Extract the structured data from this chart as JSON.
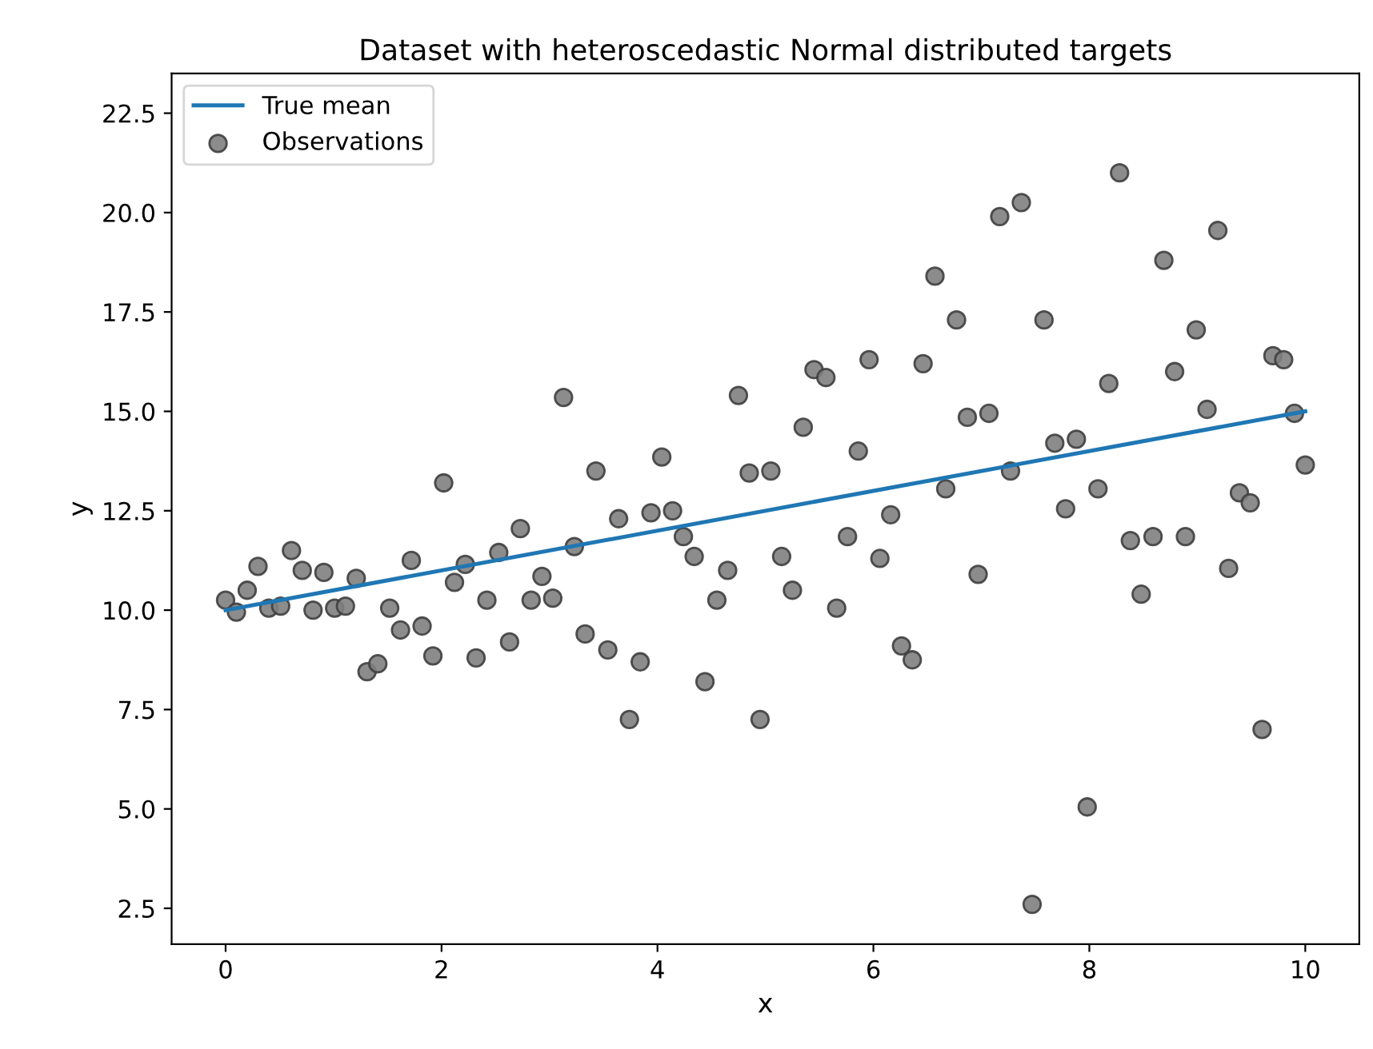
{
  "chart_data": {
    "type": "scatter",
    "title": "Dataset with heteroscedastic Normal distributed targets",
    "xlabel": "x",
    "ylabel": "y",
    "xlim": [
      -0.5,
      10.5
    ],
    "ylim": [
      1.6,
      23.5
    ],
    "xticks": [
      0,
      2,
      4,
      6,
      8,
      10
    ],
    "yticks": [
      2.5,
      {
        "value": 5,
        "label": "5.0"
      },
      7.5,
      {
        "value": 10,
        "label": "10.0"
      },
      12.5,
      {
        "value": 15,
        "label": "15.0"
      },
      17.5,
      {
        "value": 20,
        "label": "20.0"
      },
      22.5
    ],
    "grid": false,
    "legend": "top left",
    "series": [
      {
        "name": "True mean",
        "type": "line",
        "color": "#1f77b4",
        "line_style": "solid",
        "x": [
          0,
          10
        ],
        "values": [
          10,
          15
        ]
      },
      {
        "name": "Observations",
        "marker": "circle",
        "color": "#7f7f7f",
        "x": [
          0,
          0.1,
          0.2,
          0.3,
          0.4,
          0.51,
          0.61,
          0.71,
          0.81,
          0.91,
          1.01,
          1.11,
          1.21,
          1.31,
          1.41,
          1.52,
          1.62,
          1.72,
          1.82,
          1.92,
          2.02,
          2.12,
          2.22,
          2.32,
          2.42,
          2.53,
          2.63,
          2.73,
          2.83,
          2.93,
          3.03,
          3.13,
          3.23,
          3.33,
          3.43,
          3.54,
          3.64,
          3.74,
          3.84,
          3.94,
          4.04,
          4.14,
          4.24,
          4.34,
          4.44,
          4.55,
          4.65,
          4.75,
          4.85,
          4.95,
          5.05,
          5.15,
          5.25,
          5.35,
          5.45,
          5.56,
          5.66,
          5.76,
          5.86,
          5.96,
          6.06,
          6.16,
          6.26,
          6.36,
          6.46,
          6.57,
          6.67,
          6.77,
          6.87,
          6.97,
          7.07,
          7.17,
          7.27,
          7.37,
          7.47,
          7.58,
          7.68,
          7.78,
          7.88,
          7.98,
          8.08,
          8.18,
          8.28,
          8.38,
          8.48,
          8.59,
          8.69,
          8.79,
          8.89,
          8.99,
          9.09,
          9.19,
          9.29,
          9.39,
          9.49,
          9.6,
          9.7,
          9.8,
          9.9,
          10
        ],
        "values": [
          10.25,
          9.95,
          10.5,
          11.1,
          10.05,
          10.1,
          11.5,
          11.0,
          10.0,
          10.95,
          10.05,
          10.1,
          10.8,
          8.45,
          8.65,
          10.05,
          9.5,
          11.25,
          9.6,
          8.85,
          13.2,
          10.7,
          11.15,
          8.8,
          10.25,
          11.45,
          9.2,
          12.05,
          10.25,
          10.85,
          10.3,
          15.35,
          11.6,
          9.4,
          13.5,
          9.0,
          12.3,
          7.25,
          8.7,
          12.45,
          13.85,
          12.5,
          11.85,
          11.35,
          8.2,
          10.25,
          11.0,
          15.4,
          13.45,
          7.25,
          13.5,
          11.35,
          10.5,
          14.6,
          16.05,
          15.85,
          10.05,
          11.85,
          14.0,
          16.3,
          11.3,
          12.4,
          9.1,
          8.75,
          16.2,
          18.4,
          13.05,
          17.3,
          14.85,
          10.9,
          14.95,
          19.9,
          13.5,
          20.25,
          2.6,
          17.3,
          14.2,
          12.55,
          14.3,
          5.05,
          13.05,
          15.7,
          21.0,
          11.75,
          10.4,
          11.85,
          18.8,
          16.0,
          11.85,
          17.05,
          15.05,
          19.55,
          11.05,
          12.95,
          12.7,
          7.0,
          16.4,
          16.3,
          14.95,
          13.65
        ]
      }
    ]
  }
}
